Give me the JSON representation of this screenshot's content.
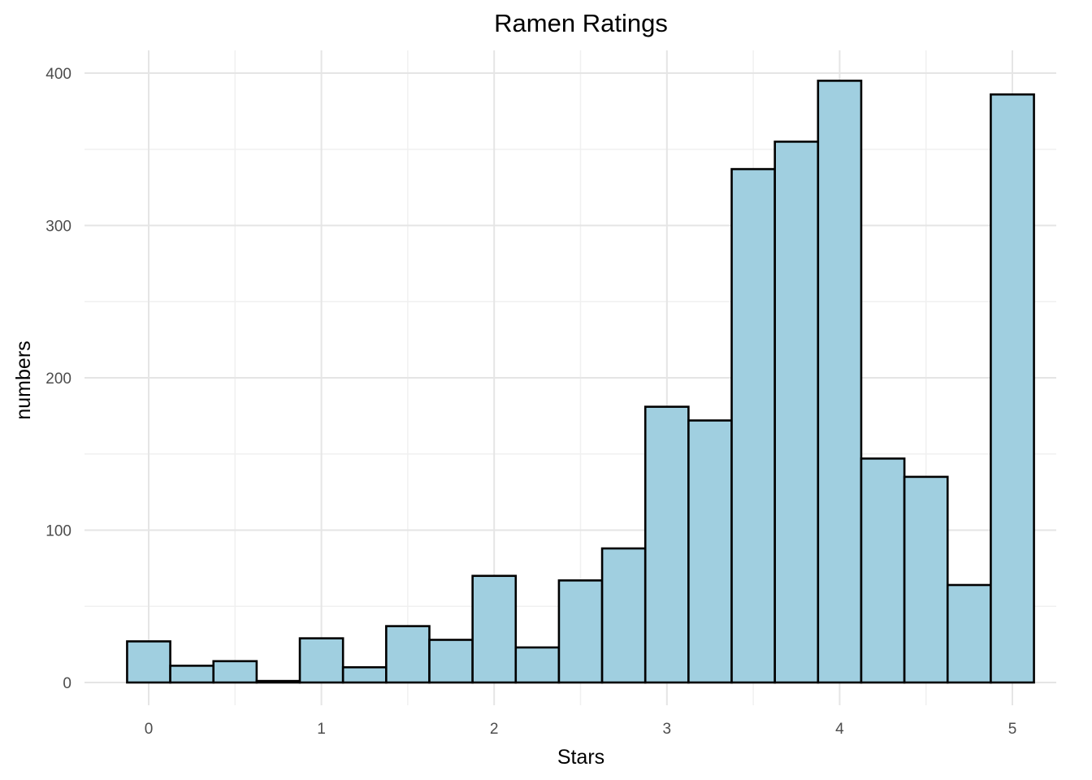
{
  "chart_data": {
    "type": "bar",
    "title": "Ramen Ratings",
    "xlabel": "Stars",
    "ylabel": "numbers",
    "bin_width": 0.25,
    "bin_centers": [
      0,
      0.25,
      0.5,
      0.75,
      1,
      1.25,
      1.5,
      1.75,
      2,
      2.25,
      2.5,
      2.75,
      3,
      3.25,
      3.5,
      3.75,
      4,
      4.25,
      4.5,
      4.75,
      5
    ],
    "values": [
      27,
      11,
      14,
      1,
      29,
      10,
      37,
      28,
      70,
      23,
      67,
      88,
      181,
      172,
      337,
      355,
      395,
      147,
      135,
      64,
      386
    ],
    "x_ticks": [
      "0",
      "1",
      "2",
      "3",
      "4",
      "5"
    ],
    "y_ticks": [
      "0",
      "100",
      "200",
      "300",
      "400"
    ],
    "xlim": [
      -0.25,
      5.25
    ],
    "ylim": [
      0,
      415
    ],
    "grid": true,
    "colors": {
      "bar_fill": "#a0cfe0",
      "bar_stroke": "#000000",
      "grid": "#e5e5e5"
    }
  }
}
